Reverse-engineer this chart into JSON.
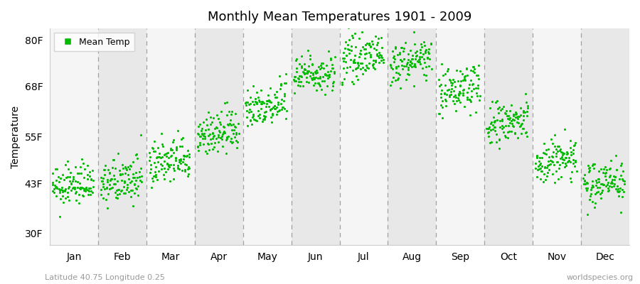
{
  "title": "Monthly Mean Temperatures 1901 - 2009",
  "ylabel": "Temperature",
  "xlabel_bottom": "Latitude 40.75 Longitude 0.25",
  "xlabel_right": "worldspecies.org",
  "legend_label": "Mean Temp",
  "yticks": [
    30,
    43,
    55,
    68,
    80
  ],
  "ytick_labels": [
    "30F",
    "43F",
    "55F",
    "68F",
    "80F"
  ],
  "ylim": [
    27,
    83
  ],
  "months": [
    "Jan",
    "Feb",
    "Mar",
    "Apr",
    "May",
    "Jun",
    "Jul",
    "Aug",
    "Sep",
    "Oct",
    "Nov",
    "Dec"
  ],
  "month_means": [
    42.5,
    43.5,
    48.5,
    56.0,
    63.5,
    71.5,
    75.5,
    74.5,
    67.5,
    58.5,
    49.0,
    43.5
  ],
  "month_stds": [
    2.5,
    2.8,
    3.0,
    2.8,
    2.8,
    2.5,
    2.5,
    2.5,
    3.0,
    3.0,
    3.0,
    2.8
  ],
  "warming_trend": 2.0,
  "num_years": 109,
  "dot_color": "#00bb00",
  "dot_size": 5,
  "bg_color_odd": "#f5f5f5",
  "bg_color_even": "#e8e8e8",
  "dashed_color": "#999999",
  "seed": 12345
}
